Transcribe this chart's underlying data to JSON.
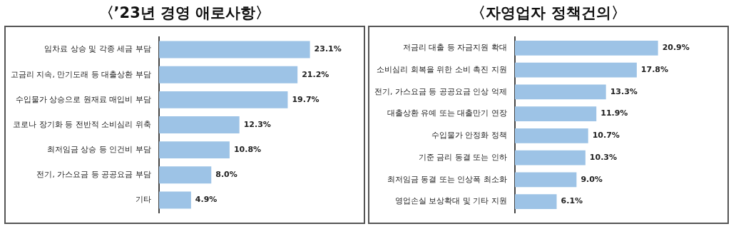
{
  "chart_data": [
    {
      "type": "bar",
      "orientation": "horizontal",
      "title": "〈’23년 경영 애로사항〉",
      "categories": [
        "임차료 상승 및 각종 세금 부담",
        "고금리 지속, 만기도래 등 대출상환 부담",
        "수입물가 상승으로 원재료 매입비 부담",
        "코로나 장기화 등 전반적 소비심리 위축",
        "최저임금 상승 등 인건비 부담",
        "전기, 가스요금 등 공공요금 부담",
        "기타"
      ],
      "values": [
        23.1,
        21.2,
        19.7,
        12.3,
        10.8,
        8.0,
        4.9
      ],
      "value_labels": [
        "23.1%",
        "21.2%",
        "19.7%",
        "12.3%",
        "10.8%",
        "8.0%",
        "4.9%"
      ],
      "color": "#9dc3e6",
      "tick_labels": "y"
    },
    {
      "type": "bar",
      "orientation": "horizontal",
      "title": "〈자영업자 정책건의〉",
      "categories": [
        "저금리 대출 등 자금지원 확대",
        "소비심리 회복을 위한 소비 촉진 지원",
        "전기, 가스요금 등 공공요금 인상 억제",
        "대출상환 유예 또는 대출만기 연장",
        "수입물가 안정화 정책",
        "기준 금리 동결 또는 인하",
        "최저임금 동결 또는 인상폭 최소화",
        "영업손실 보상확대 및 기타 지원"
      ],
      "values": [
        20.9,
        17.8,
        13.3,
        11.9,
        10.7,
        10.3,
        9.0,
        6.1
      ],
      "value_labels": [
        "20.9%",
        "17.8%",
        "13.3%",
        "11.9%",
        "10.7%",
        "10.3%",
        "9.0%",
        "6.1%"
      ],
      "color": "#9dc3e6",
      "tick_labels": "y"
    }
  ]
}
